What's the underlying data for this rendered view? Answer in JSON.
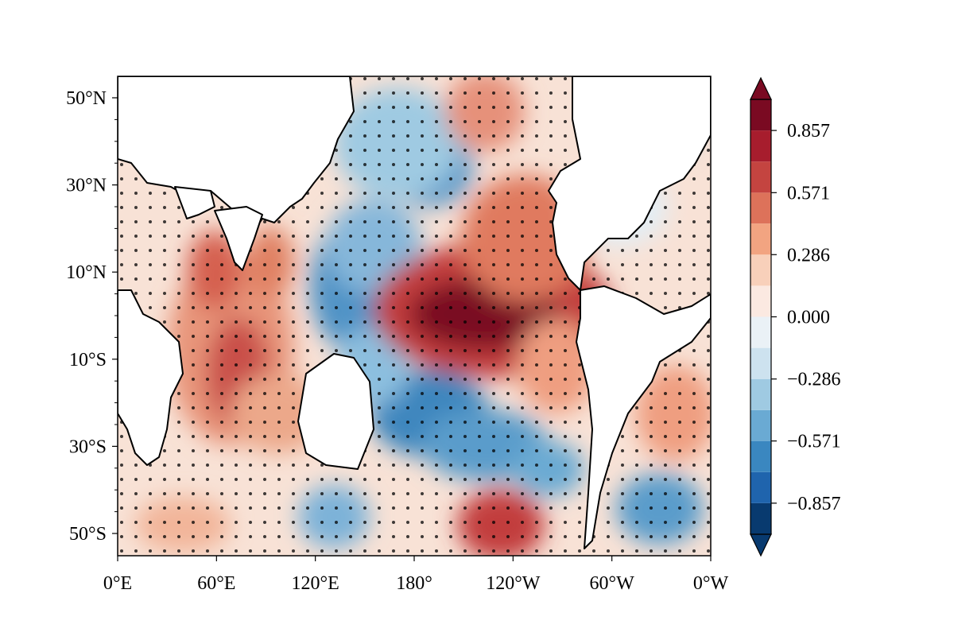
{
  "map": {
    "lat_labels": [
      "50°N",
      "30°N",
      "10°N",
      "10°S",
      "30°S",
      "50°S"
    ],
    "lon_labels": [
      "0°E",
      "60°E",
      "120°E",
      "180°",
      "120°W",
      "60°W",
      "0°W"
    ],
    "lon_range": [
      0,
      360
    ],
    "lat_range": [
      -55,
      55
    ],
    "stippling": "significance dots"
  },
  "colorbar": {
    "tick_labels": [
      "0.857",
      "0.571",
      "0.286",
      "0.000",
      "−0.286",
      "−0.571",
      "−0.857"
    ],
    "extend": "both",
    "levels": [
      -1.0,
      -0.857,
      -0.714,
      -0.571,
      -0.429,
      -0.286,
      -0.143,
      0.0,
      0.143,
      0.286,
      0.429,
      0.571,
      0.714,
      0.857,
      1.0
    ],
    "colors_low_to_high": [
      "#083a6f",
      "#1f64ad",
      "#3a87c0",
      "#6aaad3",
      "#9fcae2",
      "#cde2ef",
      "#eaf1f6",
      "#fbe9e1",
      "#f8d0ba",
      "#f2a481",
      "#dd725a",
      "#c44440",
      "#a71d2d",
      "#7a0a22"
    ]
  },
  "colors": {
    "land": "#ffffff",
    "coast": "#000000"
  }
}
